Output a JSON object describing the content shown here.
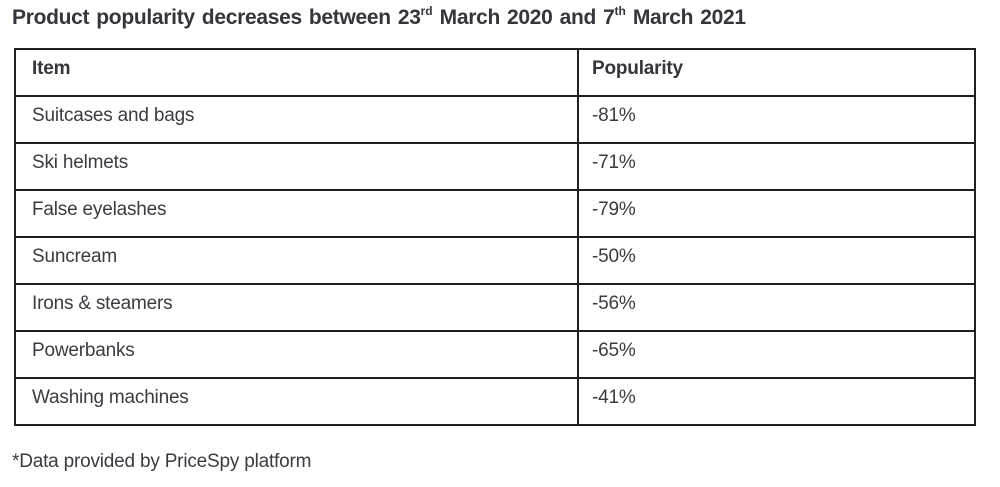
{
  "title": {
    "prefix": "Product popularity decreases between 23",
    "sup1": "rd",
    "mid": " March 2020 and 7",
    "sup2": "th",
    "suffix": " March 2021"
  },
  "table": {
    "columns": [
      "Item",
      "Popularity"
    ],
    "rows": [
      {
        "item": "Suitcases and bags",
        "popularity": "-81%"
      },
      {
        "item": "Ski helmets",
        "popularity": "-71%"
      },
      {
        "item": "False eyelashes",
        "popularity": "-79%"
      },
      {
        "item": "Suncream",
        "popularity": "-50%"
      },
      {
        "item": "Irons & steamers",
        "popularity": "-56%"
      },
      {
        "item": "Powerbanks",
        "popularity": "-65%"
      },
      {
        "item": "Washing machines",
        "popularity": "-41%"
      }
    ]
  },
  "footnote": "*Data provided by PriceSpy platform",
  "chart_data": {
    "type": "table",
    "title": "Product popularity decreases between 23rd March 2020 and 7th March 2021",
    "columns": [
      "Item",
      "Popularity"
    ],
    "categories": [
      "Suitcases and bags",
      "Ski helmets",
      "False eyelashes",
      "Suncream",
      "Irons & steamers",
      "Powerbanks",
      "Washing machines"
    ],
    "values": [
      -81,
      -71,
      -79,
      -50,
      -56,
      -65,
      -41
    ],
    "unit": "%",
    "footnote": "*Data provided by PriceSpy platform",
    "source": "PriceSpy platform"
  },
  "colors": {
    "background": "#ffffff",
    "text": "#3b3b41",
    "title_text": "#35353b",
    "border": "#1f1f1f"
  }
}
